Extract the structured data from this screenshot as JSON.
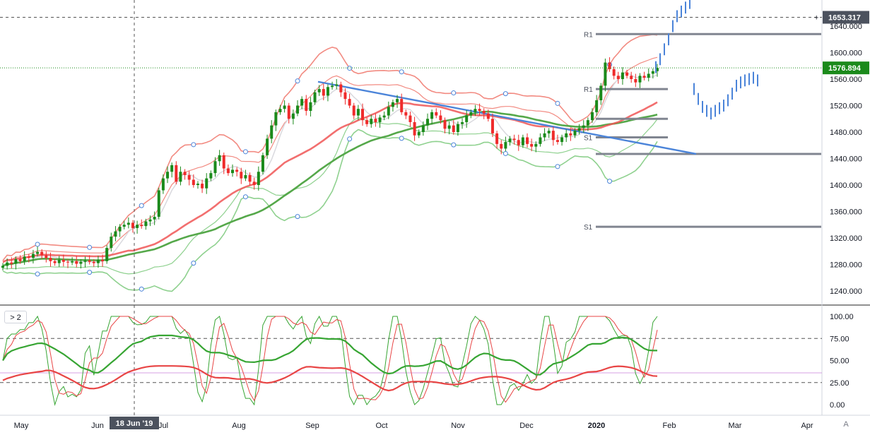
{
  "pane_toggle": "> 2",
  "auto_scale_label": "A",
  "price_tags": {
    "crosshair": {
      "label": "1653.317",
      "bg": "#4c525e"
    },
    "last_price": {
      "label": "1576.894",
      "bg": "#1b8a1b"
    }
  },
  "date_tag": "18 Jun '19",
  "colors": {
    "up": "#1b8a1b",
    "down": "#ef2b2b",
    "bb_upper": "#f28b82",
    "bb_lower": "#8fd18f",
    "ma_red": "#f05656",
    "ma_green": "#55a84a",
    "trendline": "#4b84d9",
    "projection": "#4b84d9",
    "levels": "#808590",
    "osc_k": "#37a533",
    "osc_d": "#e84545"
  },
  "chart_data": [
    {
      "type": "candlestick",
      "y_ticks": [
        "1640.000",
        "1600.000",
        "1560.000",
        "1520.000",
        "1480.000",
        "1440.000",
        "1400.000",
        "1360.000",
        "1320.000",
        "1280.000",
        "1240.000"
      ],
      "ylim": [
        1220,
        1680
      ],
      "x_ticks": [
        "May",
        "Jun",
        "Jul",
        "Aug",
        "Sep",
        "Oct",
        "Nov",
        "Dec",
        "2020",
        "Feb",
        "Mar",
        "Apr"
      ],
      "closes": [
        1278,
        1283,
        1281,
        1288,
        1285,
        1292,
        1290,
        1296,
        1299,
        1294,
        1290,
        1285,
        1282,
        1287,
        1284,
        1283,
        1285,
        1281,
        1284,
        1286,
        1284,
        1282,
        1287,
        1285,
        1305,
        1322,
        1330,
        1337,
        1340,
        1343,
        1335,
        1340,
        1338,
        1345,
        1348,
        1352,
        1392,
        1410,
        1420,
        1430,
        1405,
        1420,
        1415,
        1408,
        1400,
        1402,
        1395,
        1410,
        1418,
        1436,
        1445,
        1425,
        1418,
        1423,
        1420,
        1410,
        1415,
        1405,
        1400,
        1420,
        1445,
        1470,
        1490,
        1510,
        1515,
        1520,
        1500,
        1508,
        1520,
        1530,
        1512,
        1525,
        1540,
        1545,
        1535,
        1548,
        1550,
        1552,
        1540,
        1530,
        1520,
        1505,
        1515,
        1498,
        1492,
        1500,
        1495,
        1502,
        1505,
        1518,
        1525,
        1530,
        1510,
        1505,
        1495,
        1475,
        1480,
        1490,
        1500,
        1510,
        1505,
        1498,
        1485,
        1490,
        1480,
        1492,
        1495,
        1505,
        1510,
        1515,
        1512,
        1508,
        1500,
        1478,
        1462,
        1455,
        1465,
        1470,
        1468,
        1460,
        1472,
        1462,
        1458,
        1462,
        1472,
        1478,
        1482,
        1468,
        1465,
        1472,
        1478,
        1475,
        1482,
        1486,
        1490,
        1498,
        1510,
        1528,
        1550,
        1585,
        1575,
        1565,
        1560,
        1570,
        1565,
        1560,
        1555,
        1565,
        1562,
        1568,
        1572,
        1576.894
      ],
      "bands": {
        "upper_peak": 1585,
        "lower_trough": 1235
      },
      "levels": [
        {
          "name": "R1",
          "value": 1628
        },
        {
          "name": "R1",
          "value": 1545
        },
        {
          "name": "",
          "value": 1500
        },
        {
          "name": "S1",
          "value": 1472
        },
        {
          "name": "",
          "value": 1447
        },
        {
          "name": "S1",
          "value": 1337
        }
      ],
      "trendline": {
        "from": 1556,
        "to": 1447
      },
      "projection": [
        1578,
        1590,
        1605,
        1620,
        1640,
        1655,
        1662,
        1668,
        1675,
        1545,
        1530,
        1518,
        1512,
        1508,
        1512,
        1516,
        1520,
        1528,
        1538,
        1550,
        1555,
        1558,
        1560,
        1562,
        1558
      ]
    },
    {
      "type": "line",
      "y_ticks": [
        "100.00",
        "75.00",
        "50.00",
        "25.00",
        "0.00"
      ],
      "ylim": [
        -5,
        108
      ],
      "levels": [
        75,
        25
      ],
      "midline": 36
    }
  ]
}
